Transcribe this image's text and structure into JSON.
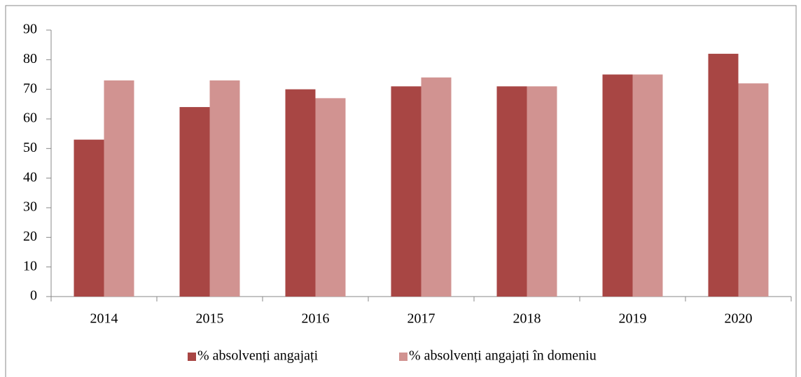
{
  "chart_data": {
    "type": "bar",
    "categories": [
      "2014",
      "2015",
      "2016",
      "2017",
      "2018",
      "2019",
      "2020"
    ],
    "series": [
      {
        "name": "% absolvenți angajați",
        "color": "#a84644",
        "values": [
          53,
          64,
          70,
          71,
          71,
          75,
          82
        ]
      },
      {
        "name": "% absolvenți angajați în domeniu",
        "color": "#d19391",
        "values": [
          73,
          73,
          67,
          74,
          71,
          75,
          72
        ]
      }
    ],
    "ylim": [
      0,
      90
    ],
    "yticks": [
      0,
      10,
      20,
      30,
      40,
      50,
      60,
      70,
      80,
      90
    ],
    "grid": false,
    "legend": "bottom"
  }
}
